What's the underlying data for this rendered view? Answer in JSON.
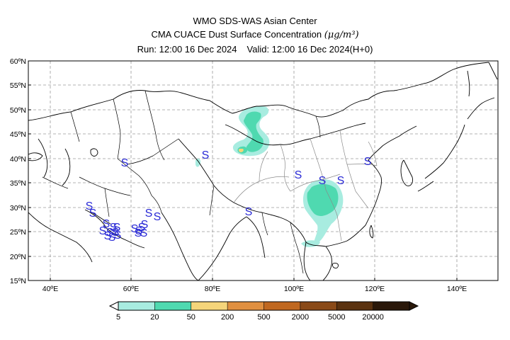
{
  "title": {
    "line1": "WMO SDS-WAS Asian Center",
    "line2_prefix": "CMA CUACE Dust Surface Concentration ",
    "line2_unit": "(μg/m³)",
    "run": "Run: 12:00 16 Dec 2024",
    "valid": "Valid: 12:00 16 Dec 2024(H+0)"
  },
  "map": {
    "lat_labels": [
      "60ºN",
      "55ºN",
      "50ºN",
      "45ºN",
      "40ºN",
      "35ºN",
      "30ºN",
      "25ºN",
      "20ºN",
      "15ºN"
    ],
    "lon_labels": [
      "40ºE",
      "60ºE",
      "80ºE",
      "100ºE",
      "120ºE",
      "140ºE"
    ],
    "lat_range": [
      15,
      60
    ],
    "lon_range": [
      35,
      150
    ],
    "gridlines": true,
    "station_symbol": "S",
    "station_color": "#2a2ad6"
  },
  "legend": {
    "tick_labels": [
      "5",
      "20",
      "50",
      "200",
      "500",
      "2000",
      "5000",
      "20000"
    ],
    "colors": [
      "#a8ece0",
      "#4fd9b0",
      "#f5d57a",
      "#e09040",
      "#c06820",
      "#8a4a18",
      "#5a3210",
      "#2a180a"
    ]
  }
}
